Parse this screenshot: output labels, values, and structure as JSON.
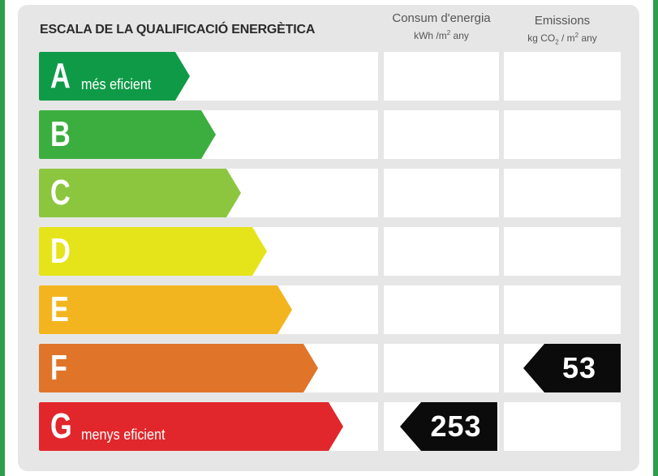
{
  "title": "ESCALA DE LA QUALIFICACIÓ ENERGÈTICA",
  "columns": {
    "consum": {
      "label": "Consum d'energia",
      "unit_a": "kWh /m",
      "unit_sup": "2",
      "unit_b": " any"
    },
    "emissions": {
      "label": "Emissions",
      "unit_a": "kg CO",
      "unit_sub": "2",
      "unit_mid": " / m",
      "unit_sup": "2",
      "unit_b": " any"
    }
  },
  "rating_scale": [
    {
      "letter": "A",
      "label": "més eficient",
      "color": "#0f9a48"
    },
    {
      "letter": "B",
      "label": "",
      "color": "#3cae3f"
    },
    {
      "letter": "C",
      "label": "",
      "color": "#8cc63f"
    },
    {
      "letter": "D",
      "label": "",
      "color": "#e5e41b"
    },
    {
      "letter": "E",
      "label": "",
      "color": "#f3b51f"
    },
    {
      "letter": "F",
      "label": "",
      "color": "#e0752a"
    },
    {
      "letter": "G",
      "label": "menys eficient",
      "color": "#e1272b"
    }
  ],
  "consum_rating": {
    "class": "G",
    "value": "253"
  },
  "emissions_rating": {
    "class": "F",
    "value": "53"
  }
}
